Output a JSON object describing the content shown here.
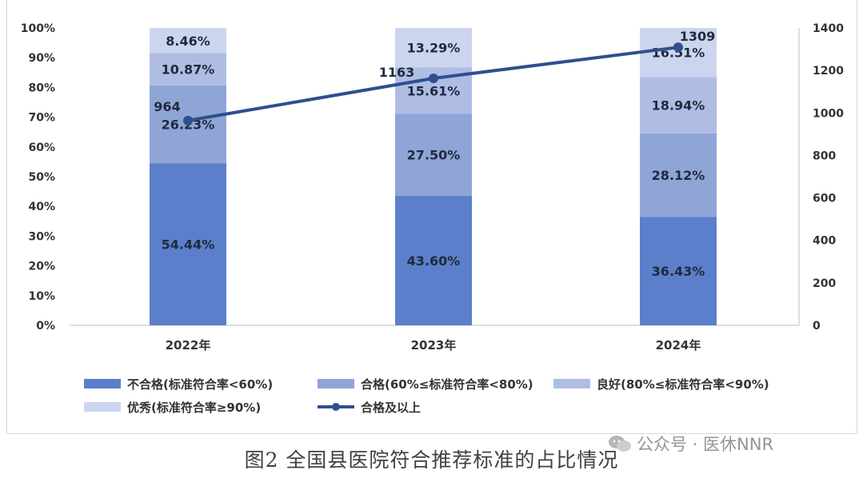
{
  "chart_data": {
    "type": "bar",
    "stacked": true,
    "categories": [
      "2022年",
      "2023年",
      "2024年"
    ],
    "series": [
      {
        "name": "不合格(标准符合率<60%)",
        "values": [
          54.44,
          43.6,
          36.43
        ],
        "labels": [
          "54.44%",
          "43.60%",
          "36.43%"
        ],
        "color": "#5b7fcb"
      },
      {
        "name": "合格(60%≤标准符合率<80%)",
        "values": [
          26.23,
          27.5,
          28.12
        ],
        "labels": [
          "26.23%",
          "27.50%",
          "28.12%"
        ],
        "color": "#8fa5d6"
      },
      {
        "name": "良好(80%≤标准符合率<90%)",
        "values": [
          10.87,
          15.61,
          18.94
        ],
        "labels": [
          "10.87%",
          "15.61%",
          "18.94%"
        ],
        "color": "#afbde5"
      },
      {
        "name": "优秀(标准符合率≥90%)",
        "values": [
          8.46,
          13.29,
          16.51
        ],
        "labels": [
          "8.46%",
          "13.29%",
          "16.51%"
        ],
        "color": "#ccd5ee"
      }
    ],
    "line": {
      "name": "合格及以上",
      "values": [
        964,
        1163,
        1309
      ],
      "labels": [
        "964",
        "1163",
        "1309"
      ],
      "color": "#2f4f8f"
    },
    "y_left": {
      "ticks": [
        "0%",
        "10%",
        "20%",
        "30%",
        "40%",
        "50%",
        "60%",
        "70%",
        "80%",
        "90%",
        "100%"
      ],
      "ylim": [
        0,
        100
      ]
    },
    "y_right": {
      "ticks": [
        "0",
        "200",
        "400",
        "600",
        "800",
        "1000",
        "1200",
        "1400"
      ],
      "ylim": [
        0,
        1400
      ]
    },
    "legend_position": "bottom"
  },
  "caption": "图2 全国县医院符合推荐标准的占比情况",
  "watermark": "公众号 · 医休NNR"
}
